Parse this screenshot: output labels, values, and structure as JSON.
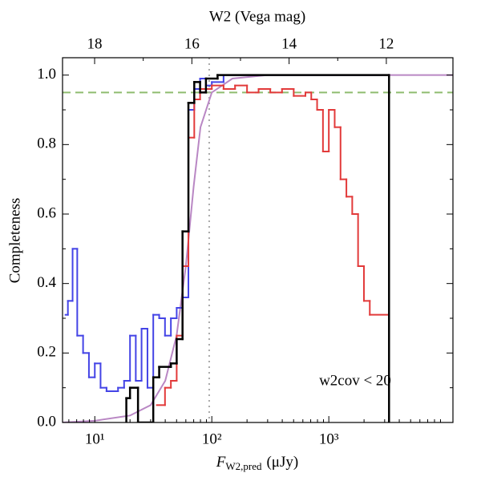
{
  "chart_data": {
    "type": "step",
    "xlabel": {
      "symbol": "F",
      "subscript": "W2,pred",
      "unit": "(μJy)"
    },
    "ylabel": "Completeness",
    "x2label": "W2 (Vega mag)",
    "xscale": "log",
    "xlim": [
      5.3,
      11500
    ],
    "ylim": [
      0,
      1.05
    ],
    "x2lim": [
      18.66,
      10.63
    ],
    "xticks": [
      {
        "value": 10,
        "label": "10¹"
      },
      {
        "value": 100,
        "label": "10²"
      },
      {
        "value": 1000,
        "label": "10³"
      }
    ],
    "yticks": [
      {
        "value": 0,
        "label": "0.0"
      },
      0.2,
      0.4,
      0.6,
      0.8,
      {
        "value": 1,
        "label": "1.0"
      }
    ],
    "x2ticks": [
      18,
      16,
      14,
      12
    ],
    "annotation": "w2cov < 20",
    "hlines": [
      {
        "y": 0.95,
        "color": "#8fbc6f",
        "style": "dashed"
      }
    ],
    "vlines": [
      {
        "x": 95,
        "color": "#aaaaaa",
        "style": "dotted"
      }
    ],
    "series": [
      {
        "color": "#4444e6",
        "closed": false,
        "bins": [
          5.62,
          5.89,
          6.46,
          7.08,
          7.94,
          8.91,
          10,
          11.2,
          12.6,
          14.1,
          15.8,
          17.8,
          20.0,
          22.4,
          25.1,
          28.2,
          31.6,
          35.5,
          39.8,
          44.7,
          50.1,
          56.2,
          63.1,
          70.8,
          79.4,
          89.1,
          100,
          126,
          2818
        ],
        "values": [
          0.31,
          0.35,
          0.5,
          0.25,
          0.2,
          0.13,
          0.17,
          0.1,
          0.09,
          0.09,
          0.1,
          0.12,
          0.25,
          0.12,
          0.27,
          0.1,
          0.31,
          0.3,
          0.25,
          0.3,
          0.33,
          0.36,
          0.9,
          0.96,
          0.99,
          0.97,
          0.98,
          1.0
        ]
      },
      {
        "color": "#e23a3a",
        "closed": false,
        "bins": [
          33.9,
          39.8,
          44.7,
          50.1,
          56.2,
          63.1,
          70.8,
          79.4,
          100,
          126,
          158,
          200,
          251,
          316,
          398,
          501,
          631,
          708,
          794,
          891,
          1000,
          1122,
          1259,
          1413,
          1585,
          1778,
          1995,
          2239,
          3162
        ],
        "values": [
          0.05,
          0.1,
          0.12,
          0.25,
          0.45,
          0.82,
          0.93,
          0.96,
          0.97,
          0.96,
          0.97,
          0.95,
          0.96,
          0.95,
          0.96,
          0.94,
          0.95,
          0.93,
          0.9,
          0.78,
          0.9,
          0.85,
          0.7,
          0.65,
          0.6,
          0.45,
          0.35,
          0.31
        ]
      },
      {
        "color": "#000000",
        "closed": true,
        "bins": [
          18.6,
          20.0,
          23.4,
          31.6,
          35.5,
          44.7,
          50.1,
          56.2,
          63.1,
          70.8,
          79.4,
          89.1,
          112,
          3270
        ],
        "values": [
          0.07,
          0.1,
          0.0,
          0.13,
          0.16,
          0.17,
          0.24,
          0.55,
          0.92,
          0.98,
          0.95,
          0.99,
          1.0
        ]
      }
    ],
    "curve": {
      "color": "#b987c4",
      "x": [
        5.3,
        10,
        20,
        30,
        40,
        50,
        60,
        70,
        80,
        100,
        150,
        300,
        11500
      ],
      "values": [
        0.0,
        0.005,
        0.02,
        0.05,
        0.12,
        0.25,
        0.45,
        0.68,
        0.85,
        0.95,
        0.99,
        1.0,
        1.0
      ]
    }
  }
}
